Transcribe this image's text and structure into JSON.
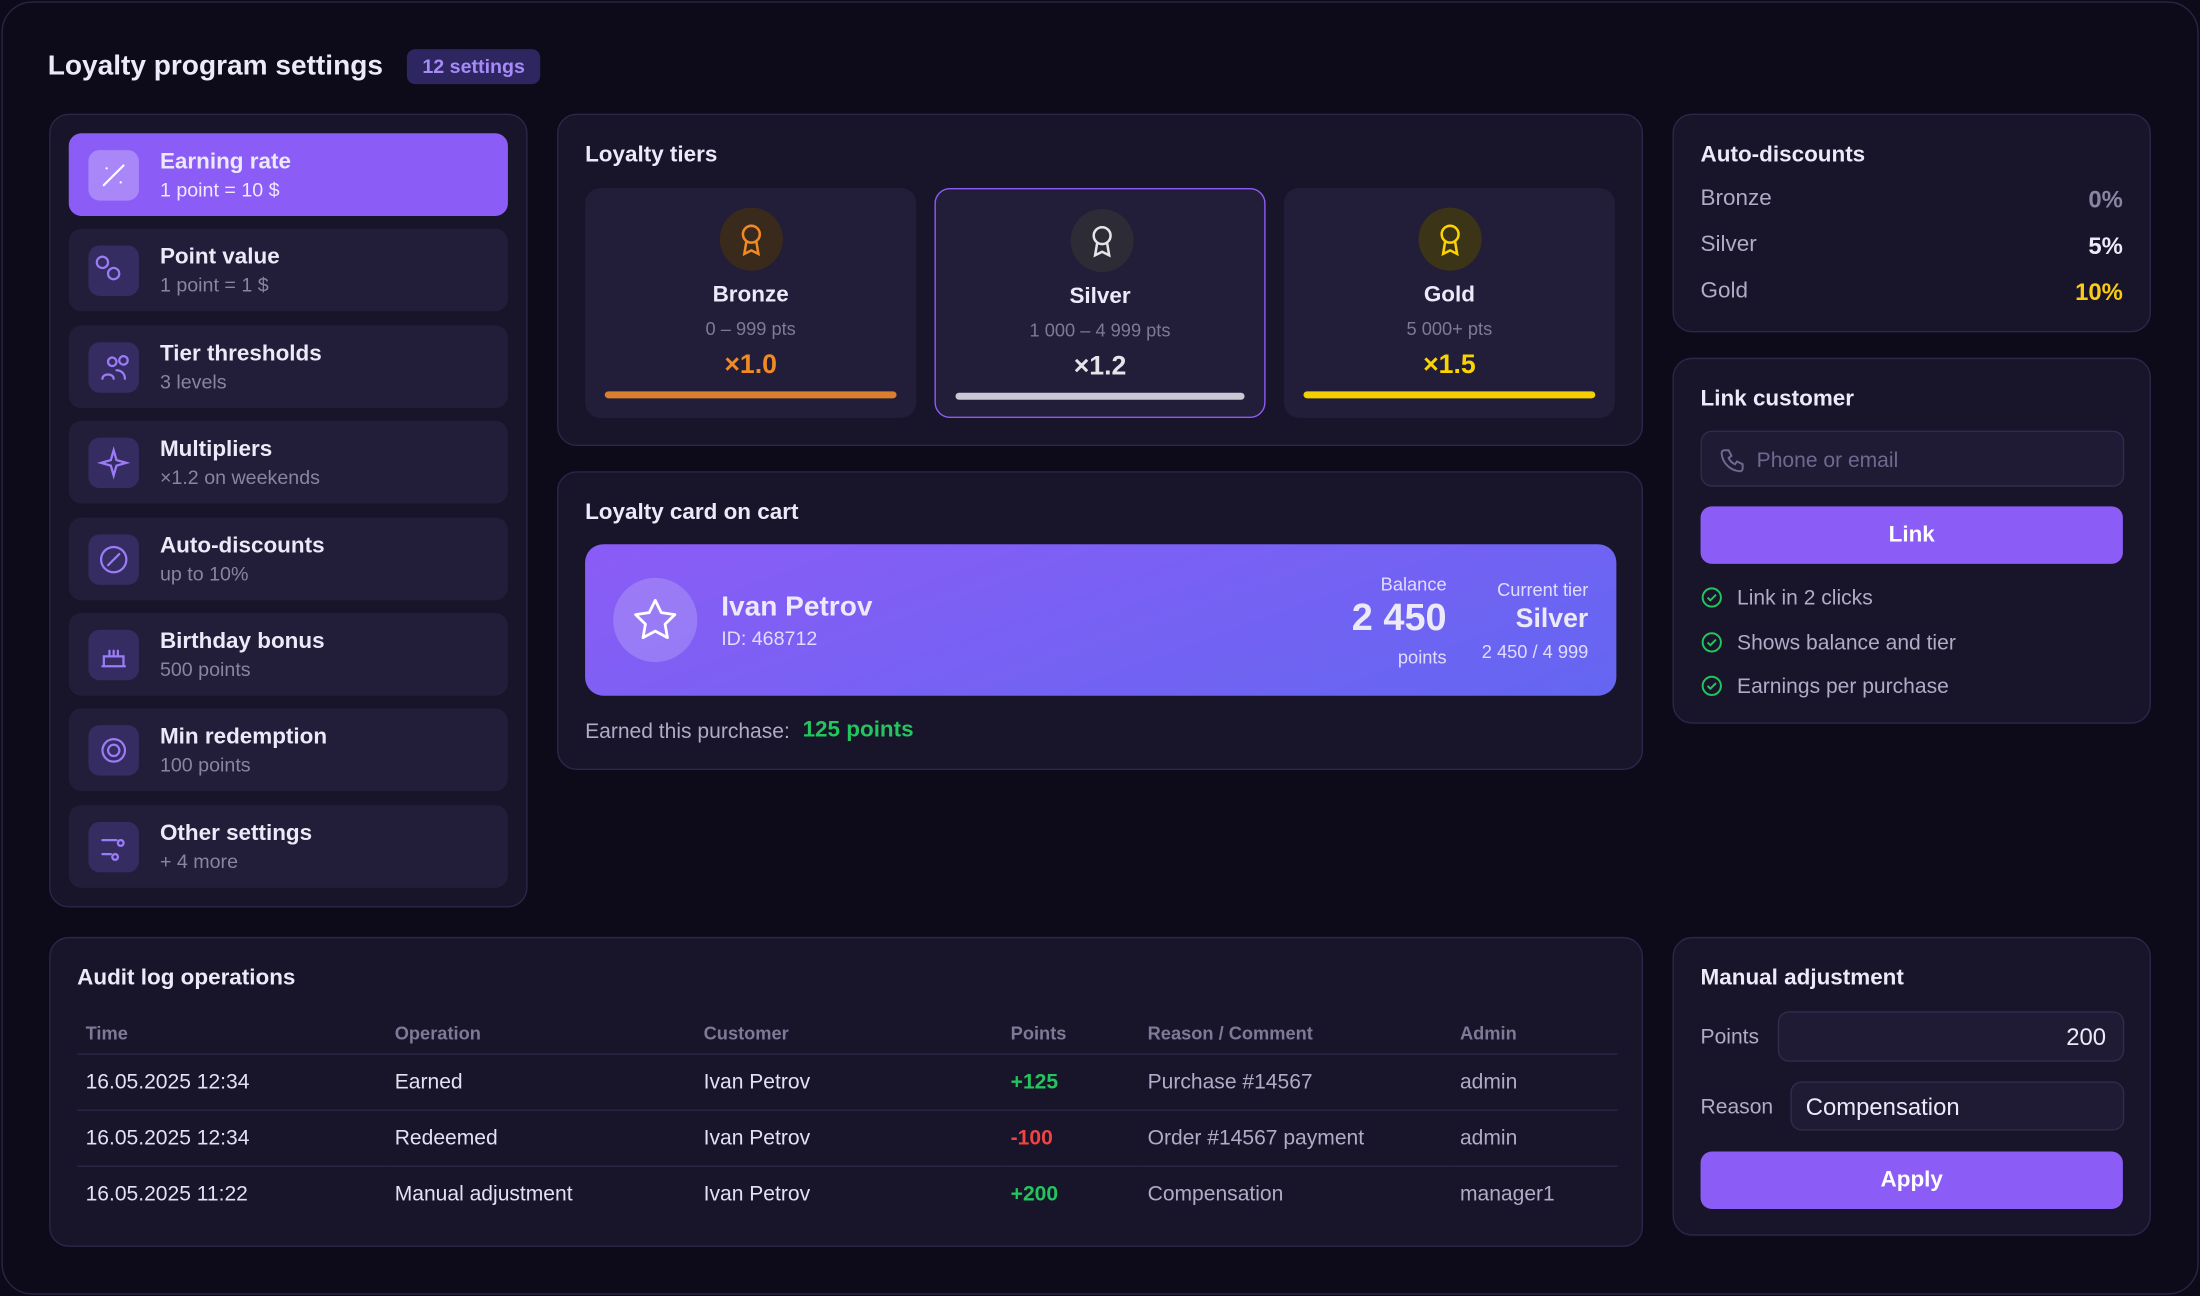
{
  "header": {
    "title": "Loyalty program settings",
    "badge": "12 settings"
  },
  "menu": [
    {
      "title": "Earning rate",
      "subtitle": "1 point = 10 $"
    },
    {
      "title": "Point value",
      "subtitle": "1 point = 1 $"
    },
    {
      "title": "Tier thresholds",
      "subtitle": "3 levels"
    },
    {
      "title": "Multipliers",
      "subtitle": "×1.2 on weekends"
    },
    {
      "title": "Auto-discounts",
      "subtitle": "up to 10%"
    },
    {
      "title": "Birthday bonus",
      "subtitle": "500 points"
    },
    {
      "title": "Min redemption",
      "subtitle": "100 points"
    },
    {
      "title": "Other settings",
      "subtitle": "+ 4 more"
    }
  ],
  "tiers": {
    "title": "Loyalty tiers",
    "items": [
      {
        "name": "Bronze",
        "range": "0 – 999 pts",
        "multiplier": "×1.0"
      },
      {
        "name": "Silver",
        "range": "1 000 – 4 999 pts",
        "multiplier": "×1.2"
      },
      {
        "name": "Gold",
        "range": "5 000+ pts",
        "multiplier": "×1.5"
      }
    ]
  },
  "cart": {
    "title": "Loyalty card on cart",
    "name": "Ivan Petrov",
    "id": "ID: 468712",
    "balance_label": "Balance",
    "balance": "2 450",
    "balance_unit": "points",
    "tier_label": "Current tier",
    "tier": "Silver",
    "tier_progress": "2 450 / 4 999",
    "earned_label": "Earned this purchase:",
    "earned": "125 points"
  },
  "auto_discounts": {
    "title": "Auto-discounts",
    "rows": [
      {
        "tier": "Bronze",
        "value": "0%"
      },
      {
        "tier": "Silver",
        "value": "5%"
      },
      {
        "tier": "Gold",
        "value": "10%"
      }
    ]
  },
  "link": {
    "title": "Link customer",
    "placeholder": "Phone or email",
    "button": "Link",
    "features": [
      "Link in 2 clicks",
      "Shows balance and tier",
      "Earnings per purchase"
    ]
  },
  "audit": {
    "title": "Audit log operations",
    "columns": [
      "Time",
      "Operation",
      "Customer",
      "Points",
      "Reason / Comment",
      "Admin"
    ],
    "rows": [
      [
        "16.05.2025 12:34",
        "Earned",
        "Ivan Petrov",
        "+125",
        "Purchase #14567",
        "admin"
      ],
      [
        "16.05.2025 12:34",
        "Redeemed",
        "Ivan Petrov",
        "-100",
        "Order #14567 payment",
        "admin"
      ],
      [
        "16.05.2025 11:22",
        "Manual adjustment",
        "Ivan Petrov",
        "+200",
        "Compensation",
        "manager1"
      ]
    ]
  },
  "manual": {
    "title": "Manual adjustment",
    "points_label": "Points",
    "points_value": "200",
    "reason_label": "Reason",
    "reason_value": "Compensation",
    "button": "Apply"
  }
}
